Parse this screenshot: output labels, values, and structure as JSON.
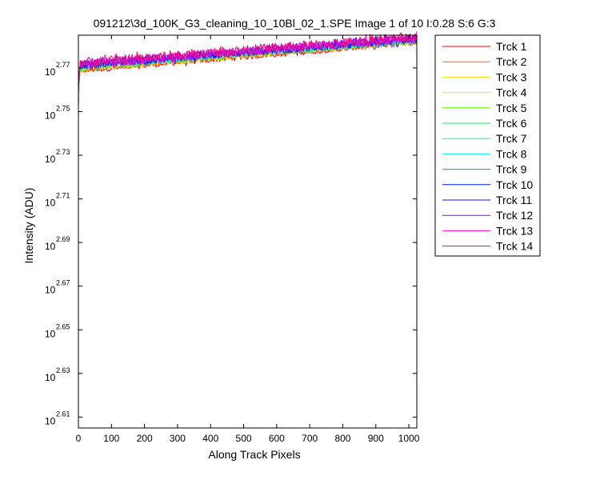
{
  "chart_data": {
    "type": "line",
    "title": "091212\\3d_100K_G3_cleaning_10_10Bl_02_1.SPE  Image 1 of 10  I:0.28  S:6  G:3",
    "xlabel": "Along Track Pixels",
    "ylabel": "Intensity (ADU)",
    "xlim": [
      0,
      1024
    ],
    "ylim_log10": [
      2.605,
      2.785
    ],
    "y_scale": "log",
    "y_tick_base": "10",
    "x_ticks": [
      "0",
      "100",
      "200",
      "300",
      "400",
      "500",
      "600",
      "700",
      "800",
      "900",
      "1000"
    ],
    "y_ticks": [
      {
        "exp": "2.61",
        "log10": 2.61
      },
      {
        "exp": "2.63",
        "log10": 2.63
      },
      {
        "exp": "2.65",
        "log10": 2.65
      },
      {
        "exp": "2.67",
        "log10": 2.67
      },
      {
        "exp": "2.69",
        "log10": 2.69
      },
      {
        "exp": "2.71",
        "log10": 2.71
      },
      {
        "exp": "2.73",
        "log10": 2.73
      },
      {
        "exp": "2.75",
        "log10": 2.75
      },
      {
        "exp": "2.77",
        "log10": 2.77
      }
    ],
    "legend_position": "outside-right",
    "grid": false,
    "series": [
      {
        "name": "Trck 1",
        "color": "#ff0000",
        "log10_start": 2.7686,
        "log10_end": 2.7816
      },
      {
        "name": "Trck 2",
        "color": "#ff6a00",
        "log10_start": 2.7691,
        "log10_end": 2.782
      },
      {
        "name": "Trck 3",
        "color": "#ffd500",
        "log10_start": 2.7696,
        "log10_end": 2.7824
      },
      {
        "name": "Trck 4",
        "color": "#c0ff00",
        "log10_start": 2.77,
        "log10_end": 2.7826
      },
      {
        "name": "Trck 5",
        "color": "#55ff00",
        "log10_start": 2.7703,
        "log10_end": 2.7828
      },
      {
        "name": "Trck 6",
        "color": "#00ff40",
        "log10_start": 2.7706,
        "log10_end": 2.7829
      },
      {
        "name": "Trck 7",
        "color": "#00ffaa",
        "log10_start": 2.7708,
        "log10_end": 2.783
      },
      {
        "name": "Trck 8",
        "color": "#00eaff",
        "log10_start": 2.771,
        "log10_end": 2.7831
      },
      {
        "name": "Trck 9",
        "color": "#0095ff",
        "log10_start": 2.7712,
        "log10_end": 2.7832
      },
      {
        "name": "Trck 10",
        "color": "#0015ff",
        "log10_start": 2.7713,
        "log10_end": 2.7833
      },
      {
        "name": "Trck 11",
        "color": "#4000ff",
        "log10_start": 2.7714,
        "log10_end": 2.7834
      },
      {
        "name": "Trck 12",
        "color": "#aa00ff",
        "log10_start": 2.7716,
        "log10_end": 2.7836
      },
      {
        "name": "Trck 13",
        "color": "#ff00d5",
        "log10_start": 2.7718,
        "log10_end": 2.7838
      },
      {
        "name": "Trck 14",
        "color": "#ff006a",
        "log10_start": 2.7724,
        "log10_end": 2.7842
      }
    ]
  }
}
